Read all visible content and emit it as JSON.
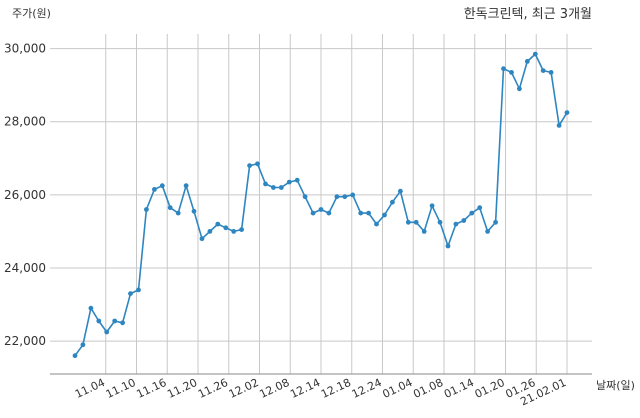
{
  "chart_data": {
    "type": "line",
    "title": "한독크린텍, 최근 3개월",
    "ylabel": "주가(원)",
    "xlabel": "날짜(일)",
    "ylim": [
      21100,
      30400
    ],
    "yticks": [
      22000,
      24000,
      26000,
      28000,
      30000
    ],
    "ytick_labels": [
      "22,000",
      "24,000",
      "26,000",
      "28,000",
      "30,000"
    ],
    "xtick_labels": [
      "11.04",
      "11.10",
      "11.16",
      "11.20",
      "11.26",
      "12.02",
      "12.08",
      "12.14",
      "12.18",
      "12.24",
      "01.04",
      "01.08",
      "01.14",
      "01.20",
      "01.26",
      "21.02.01"
    ],
    "grid": true,
    "line_color": "#2e86c1",
    "series": [
      {
        "values": [
          21600,
          21900,
          22900,
          22550,
          22250,
          22550,
          22500,
          23300,
          23400,
          25600,
          26150,
          26250,
          25650,
          25500,
          26250,
          25550,
          24800,
          25000,
          25200,
          25100,
          25000,
          25050,
          26800,
          26850,
          26300,
          26200,
          26200,
          26350,
          26400,
          25950,
          25500,
          25600,
          25500,
          25950,
          25950,
          26000,
          25500,
          25500,
          25200,
          25450,
          25800,
          26100,
          25250,
          25250,
          25000,
          25700,
          25250,
          24600,
          25200,
          25300,
          25500,
          25650,
          25000,
          25250,
          29450,
          29350,
          28900,
          29650,
          29850,
          29400,
          29350,
          27900,
          28250
        ]
      }
    ]
  }
}
